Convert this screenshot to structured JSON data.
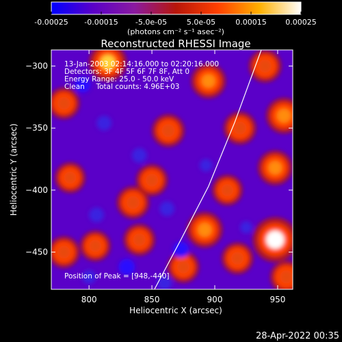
{
  "chart_data": {
    "type": "heatmap",
    "title": "Reconstructed RHESSI Image",
    "xlabel": "Heliocentric X (arcsec)",
    "ylabel": "Heliocentric Y (arcsec)",
    "xlim": [
      770,
      962
    ],
    "ylim": [
      -480,
      -287
    ],
    "xticks": [
      800,
      850,
      900,
      950
    ],
    "yticks": [
      -300,
      -350,
      -400,
      -450
    ],
    "colorbar": {
      "range": [
        -0.00025,
        0.00025
      ],
      "tick_labels": [
        "-0.00025",
        "-0.00015",
        "-5.0e-05",
        "5.0e-05",
        "0.00015",
        "0.00025"
      ],
      "unit_label": "(photons cm⁻² s⁻¹ asec⁻²)",
      "colors": [
        "#0000ff",
        "#5a00c8",
        "#8a1aa0",
        "#b8160a",
        "#ff4000",
        "#ffb000",
        "#ffffff"
      ]
    },
    "annotations": [
      "13-Jan-2003 02:14:16.000 to 02:20:16.000",
      "Detectors: 3F 4F 5F 6F 7F 8F, Att 0",
      "Energy Range: 25.0 - 50.0 keV",
      "Clean     Total counts: 4.96E+03"
    ],
    "peak_label": "Position of Peak = [948,-440]",
    "peak": {
      "x": 948,
      "y": -440,
      "value": 0.00025
    },
    "limb_curve": {
      "x": [
        852,
        873,
        895,
        916,
        937
      ],
      "y": [
        -480,
        -440,
        -397,
        -345,
        -287
      ]
    },
    "hotspots": [
      {
        "x": 948,
        "y": -440,
        "value": 0.00025
      },
      {
        "x": 815,
        "y": -297,
        "value": 0.00018
      },
      {
        "x": 895,
        "y": -312,
        "value": 0.00015
      },
      {
        "x": 940,
        "y": -300,
        "value": 0.00013
      },
      {
        "x": 955,
        "y": -340,
        "value": 0.00016
      },
      {
        "x": 948,
        "y": -382,
        "value": 0.00015
      },
      {
        "x": 920,
        "y": -350,
        "value": 0.00013
      },
      {
        "x": 863,
        "y": -352,
        "value": 0.00013
      },
      {
        "x": 850,
        "y": -392,
        "value": 0.00012
      },
      {
        "x": 835,
        "y": -410,
        "value": 0.00013
      },
      {
        "x": 780,
        "y": -330,
        "value": 0.00012
      },
      {
        "x": 785,
        "y": -390,
        "value": 0.00011
      },
      {
        "x": 780,
        "y": -450,
        "value": 0.00012
      },
      {
        "x": 805,
        "y": -445,
        "value": 0.00011
      },
      {
        "x": 840,
        "y": -440,
        "value": 0.00012
      },
      {
        "x": 892,
        "y": -432,
        "value": 0.00016
      },
      {
        "x": 918,
        "y": -455,
        "value": 0.00012
      },
      {
        "x": 910,
        "y": -400,
        "value": 0.00011
      },
      {
        "x": 875,
        "y": -462,
        "value": 0.00012
      },
      {
        "x": 957,
        "y": -470,
        "value": 0.00013
      }
    ],
    "coldspots": [
      {
        "x": 795,
        "y": -315,
        "value": -0.00014
      },
      {
        "x": 812,
        "y": -346,
        "value": -0.00012
      },
      {
        "x": 840,
        "y": -372,
        "value": -0.00012
      },
      {
        "x": 806,
        "y": -420,
        "value": -0.00012
      },
      {
        "x": 830,
        "y": -462,
        "value": -0.00015
      },
      {
        "x": 862,
        "y": -415,
        "value": -0.00012
      },
      {
        "x": 873,
        "y": -448,
        "value": -0.00014
      },
      {
        "x": 860,
        "y": -475,
        "value": -0.00012
      },
      {
        "x": 800,
        "y": -470,
        "value": -0.0001
      },
      {
        "x": 893,
        "y": -380,
        "value": -8e-05
      },
      {
        "x": 925,
        "y": -430,
        "value": -7e-05
      }
    ]
  },
  "footer": {
    "timestamp": "28-Apr-2022 00:35"
  }
}
